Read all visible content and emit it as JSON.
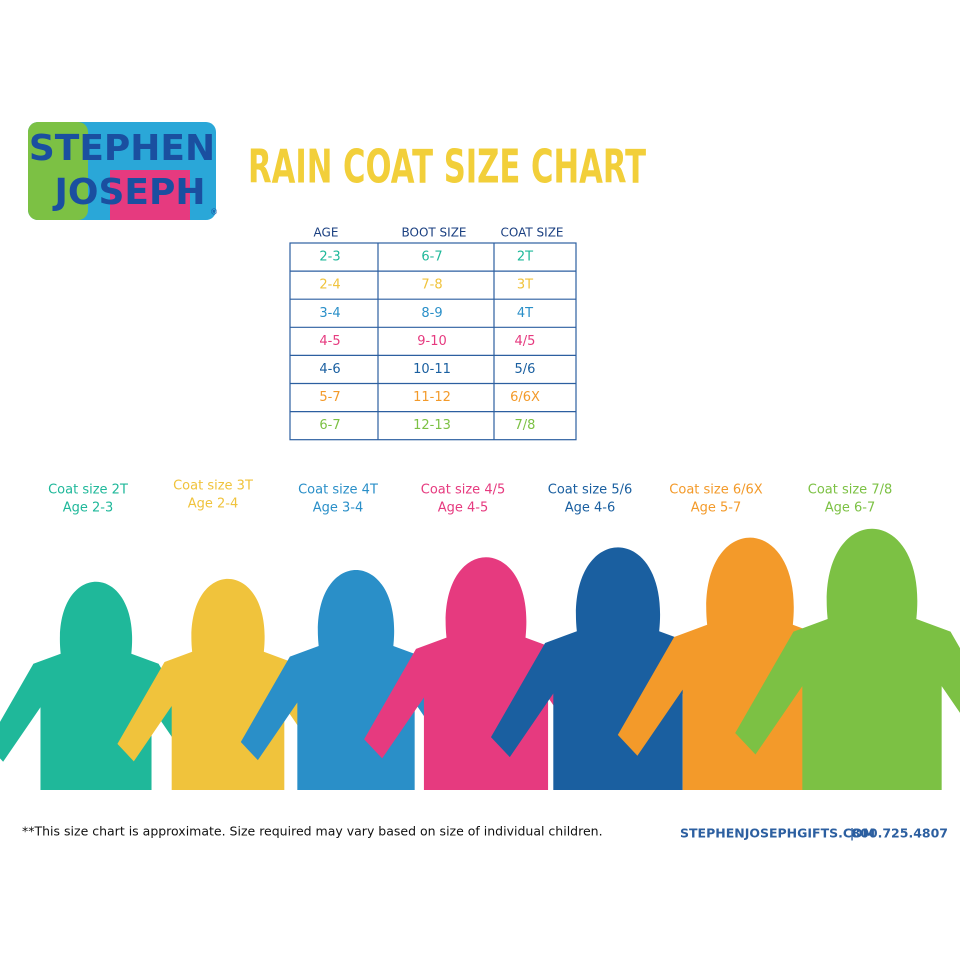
{
  "logo": {
    "line1": "STEPHEN",
    "line2": "JOSEPH",
    "mark": "®"
  },
  "title": "RAIN COAT SIZE CHART",
  "table": {
    "headers": [
      "AGE",
      "BOOT SIZE",
      "COAT SIZE"
    ],
    "rows": [
      [
        "2-3",
        "6-7",
        "2T"
      ],
      [
        "2-4",
        "7-8",
        "3T"
      ],
      [
        "3-4",
        "8-9",
        "4T"
      ],
      [
        "4-5",
        "9-10",
        "4/5"
      ],
      [
        "4-6",
        "10-11",
        "5/6"
      ],
      [
        "5-7",
        "11-12",
        "6/6X"
      ],
      [
        "6-7",
        "12-13",
        "7/8"
      ]
    ]
  },
  "coats": [
    {
      "size": "Coat size 2T",
      "age": "Age 2-3"
    },
    {
      "size": "Coat size 3T",
      "age": "Age 2-4"
    },
    {
      "size": "Coat size 4T",
      "age": "Age 3-4"
    },
    {
      "size": "Coat size 4/5",
      "age": "Age 4-5"
    },
    {
      "size": "Coat size 5/6",
      "age": "Age 4-6"
    },
    {
      "size": "Coat size 6/6X",
      "age": "Age 5-7"
    },
    {
      "size": "Coat size 7/8",
      "age": "Age 6-7"
    }
  ],
  "footer": {
    "note": "**This size chart is approximate. Size required may vary based on size of individual children.",
    "website": "STEPHENJOSEPHGIFTS.COM",
    "separator": "|",
    "phone": "800.725.4807"
  }
}
